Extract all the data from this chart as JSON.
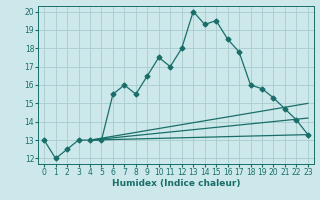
{
  "xlabel": "Humidex (Indice chaleur)",
  "bg_color": "#cce8ea",
  "grid_color": "#aaccce",
  "line_color": "#1a6e6a",
  "xlim": [
    -0.5,
    23.5
  ],
  "ylim": [
    11.7,
    20.3
  ],
  "yticks": [
    12,
    13,
    14,
    15,
    16,
    17,
    18,
    19,
    20
  ],
  "xticks": [
    0,
    1,
    2,
    3,
    4,
    5,
    6,
    7,
    8,
    9,
    10,
    11,
    12,
    13,
    14,
    15,
    16,
    17,
    18,
    19,
    20,
    21,
    22,
    23
  ],
  "main_x": [
    0,
    1,
    2,
    3,
    4,
    5,
    6,
    7,
    8,
    9,
    10,
    11,
    12,
    13,
    14,
    15,
    16,
    17,
    18,
    19,
    20,
    21,
    22,
    23
  ],
  "main_y": [
    13,
    12,
    12.5,
    13,
    13,
    13,
    15.5,
    16,
    15.5,
    16.5,
    17.5,
    17,
    18,
    20,
    19.3,
    19.5,
    18.5,
    17.8,
    16,
    15.8,
    15.3,
    14.7,
    14.1,
    13.3
  ],
  "line1_x": [
    4,
    23
  ],
  "line1_y": [
    13.0,
    15.0
  ],
  "line2_x": [
    4,
    23
  ],
  "line2_y": [
    13.0,
    14.2
  ],
  "line3_x": [
    4,
    23
  ],
  "line3_y": [
    13.0,
    13.3
  ]
}
